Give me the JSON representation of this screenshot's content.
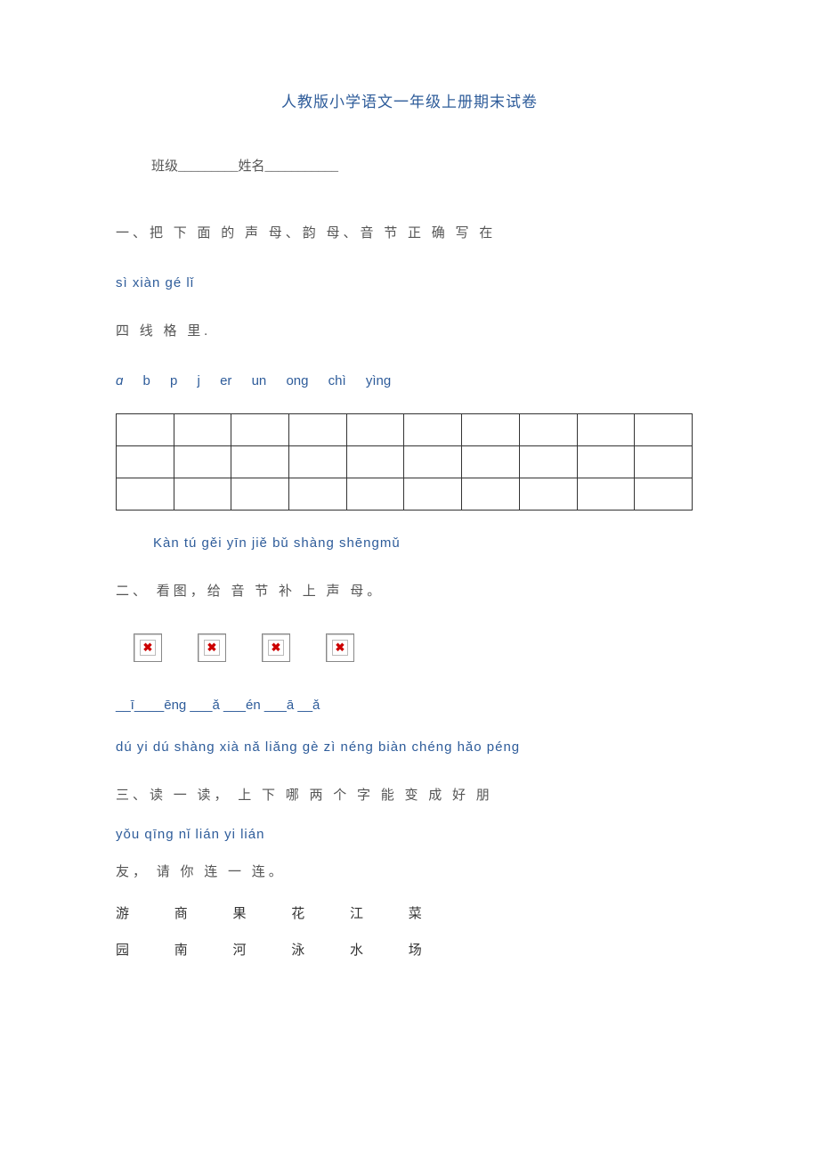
{
  "title": "人教版小学语文一年级上册期末试卷",
  "class_label": "班级_________姓名___________",
  "section1": {
    "line1": "一、把 下 面 的 声 母、韵 母、音 节 正  确 写 在",
    "pinyin": "sì xiàn gé lǐ",
    "line2": "四 线 格 里."
  },
  "letters": [
    "ɑ",
    "b",
    "p",
    "j",
    "er",
    "un",
    "ong",
    "chì",
    "yìng"
  ],
  "grid": {
    "rows": 3,
    "cols": 10
  },
  "section2": {
    "pinyin": "Kàn tú gěi yīn jiě bǔ shàng shēngmǔ",
    "text": "二、 看图，给 音 节 补 上  声 母。",
    "blanks": "__ī____ēng    ___ǎ     ___én       ___ā __ǎ"
  },
  "section3": {
    "pinyin1": "dú yi dú shàng xià nǎ liǎng gè zì néng biàn chéng hǎo péng",
    "line1": "三、读 一 读， 上  下 哪 两 个 字 能 变  成 好  朋",
    "pinyin2": "yǒu qīng nǐ lián yi lián",
    "line2": "友， 请 你 连 一 连。",
    "row1": [
      "游",
      "商",
      "果",
      "花",
      "江",
      "菜"
    ],
    "row2": [
      "园",
      "南",
      "河",
      "泳",
      "水",
      "场"
    ]
  },
  "colors": {
    "title_color": "#2e5c9a",
    "pinyin_color": "#2e5c9a",
    "text_color": "#555555",
    "char_color": "#333333",
    "border_color": "#333333",
    "background": "#ffffff"
  }
}
